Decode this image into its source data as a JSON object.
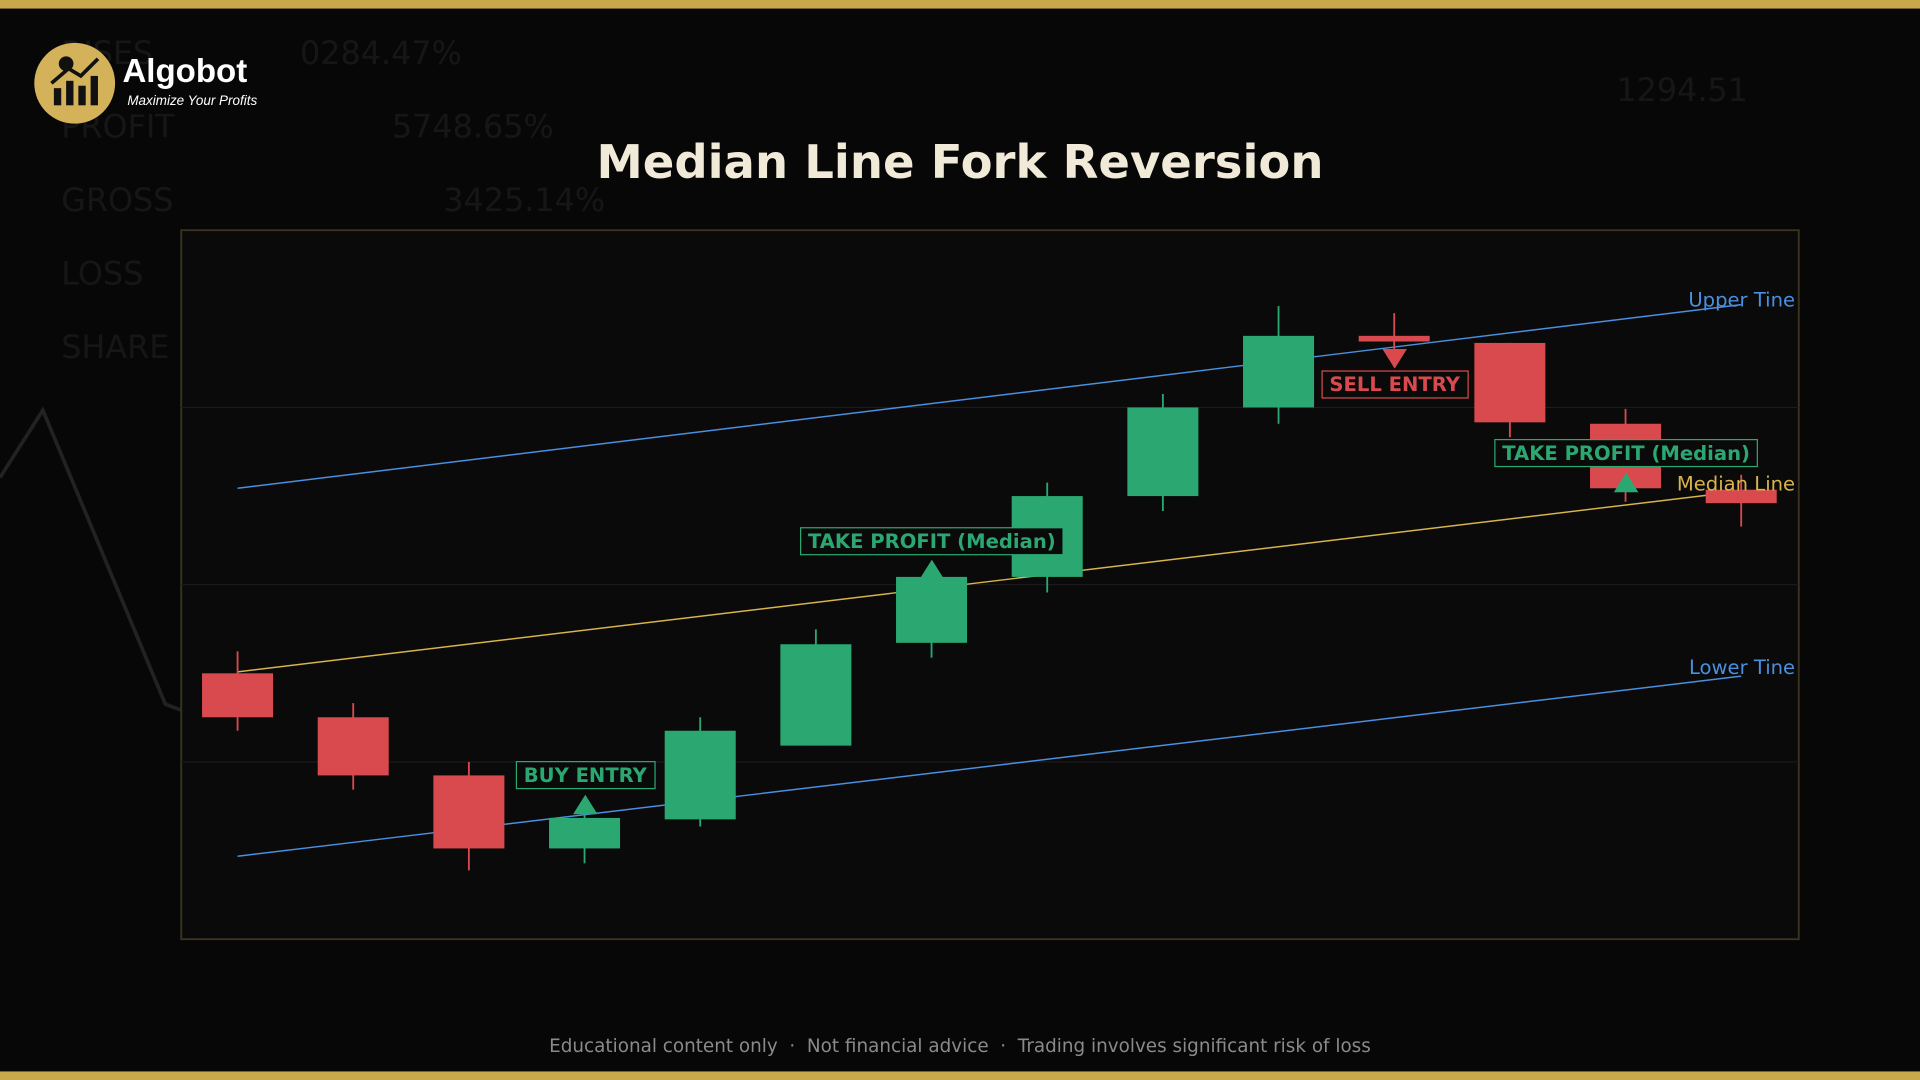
{
  "header": {
    "brand": "Algobot",
    "tagline": "Maximize Your Profits"
  },
  "background": {
    "stats": [
      "RISES",
      "0284.47%",
      "PROFIT",
      "5748.65%",
      "GROSS",
      "3425.14%",
      "LOSS",
      "SHARE",
      "1294.51"
    ]
  },
  "chart_data": {
    "type": "candlestick",
    "title": "Median Line Fork Reversion",
    "categories": [
      null,
      null,
      null,
      null,
      null,
      null,
      null,
      null,
      null,
      null,
      null,
      null,
      null,
      null
    ],
    "open": [
      37.5,
      31.3,
      23.1,
      12.8,
      16.9,
      27.3,
      41.8,
      51.1,
      62.5,
      75.0,
      85.1,
      84.1,
      72.7,
      63.4
    ],
    "high": [
      40.6,
      33.3,
      25.0,
      18.5,
      31.3,
      43.7,
      52.7,
      64.4,
      76.9,
      89.3,
      88.3,
      84.1,
      74.8,
      65.5
    ],
    "low": [
      29.4,
      21.1,
      9.7,
      10.7,
      15.9,
      27.3,
      39.7,
      48.9,
      60.4,
      72.7,
      80.7,
      70.8,
      61.7,
      58.2
    ],
    "close": [
      31.3,
      23.1,
      12.8,
      17.1,
      29.4,
      41.6,
      51.1,
      62.5,
      75.0,
      85.1,
      84.3,
      72.9,
      63.6,
      61.5
    ],
    "up_color": "#2ba872",
    "down_color": "#d84a4e",
    "ylim": [
      0,
      100
    ],
    "yticks": [
      25,
      50,
      75
    ],
    "grid": true,
    "lines": [
      {
        "name": "Upper Tine",
        "color": "#4a8fe0",
        "x": [
          0,
          13
        ],
        "values": [
          63.6,
          89.5
        ]
      },
      {
        "name": "Median Line",
        "color": "#d9b44a",
        "x": [
          0,
          13
        ],
        "values": [
          37.7,
          63.2
        ]
      },
      {
        "name": "Lower Tine",
        "color": "#4a8fe0",
        "x": [
          0,
          13
        ],
        "values": [
          11.7,
          37.1
        ]
      }
    ],
    "annotations": [
      {
        "text": "BUY ENTRY",
        "color": "#2ba872"
      },
      {
        "text": "TAKE PROFIT (Median)",
        "color": "#2ba872"
      },
      {
        "text": "SELL ENTRY",
        "color": "#d84a4e"
      },
      {
        "text": "TAKE PROFIT (Median)",
        "color": "#2ba872"
      }
    ]
  },
  "footer": {
    "text": "Educational content only  ·  Not financial advice  ·  Trading involves significant risk of loss"
  }
}
